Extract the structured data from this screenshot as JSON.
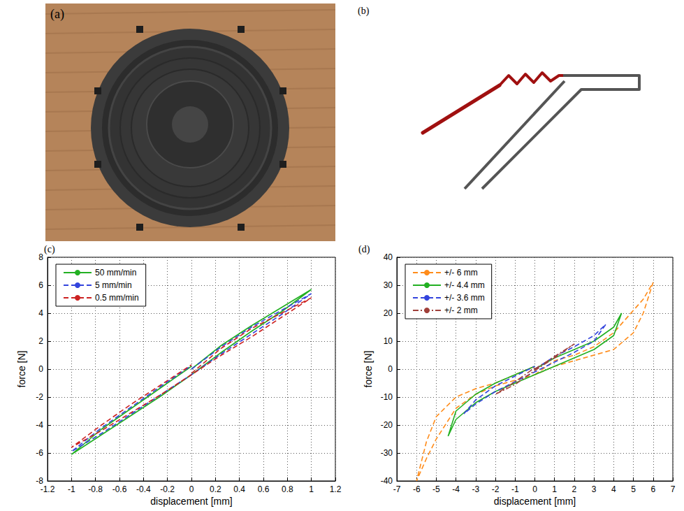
{
  "photo": {
    "label": "(a)"
  },
  "diagram": {
    "label": "(b)"
  },
  "chart_data": [
    {
      "type": "line",
      "title": "(c)",
      "x_label": "displacement [mm]",
      "y_label": "force [N]",
      "xlim": [
        -1.2,
        1.2
      ],
      "xticks": [
        -1.2,
        -1,
        -0.8,
        -0.6,
        -0.4,
        -0.2,
        0,
        0.2,
        0.4,
        0.6,
        0.8,
        1,
        1.2
      ],
      "ylim": [
        -8,
        8
      ],
      "yticks": [
        -8,
        -6,
        -4,
        -2,
        0,
        2,
        4,
        6,
        8
      ],
      "grid": true,
      "legend": "upper left",
      "series": [
        {
          "name": "50 mm/min",
          "color": "#22b022",
          "line_style": "solid",
          "x": [
            0,
            0.25,
            0.5,
            0.75,
            1,
            0.75,
            0.5,
            0.25,
            0,
            -0.25,
            -0.5,
            -0.75,
            -1,
            -0.75,
            -0.5,
            -0.25,
            0
          ],
          "values": [
            0,
            1.7,
            3.1,
            4.4,
            5.7,
            4.1,
            2.7,
            1.2,
            -0.4,
            -1.9,
            -3.3,
            -4.7,
            -6.1,
            -4.3,
            -2.8,
            -1.3,
            0.2
          ]
        },
        {
          "name": "5 mm/min",
          "color": "#3344dd",
          "line_style": "dashed",
          "x": [
            0,
            0.25,
            0.5,
            0.75,
            1,
            0.75,
            0.5,
            0.25,
            0,
            -0.25,
            -0.5,
            -0.75,
            -1,
            -0.75,
            -0.5,
            -0.25,
            0
          ],
          "values": [
            0,
            1.6,
            3.0,
            4.2,
            5.4,
            3.9,
            2.5,
            1.1,
            -0.4,
            -1.8,
            -3.2,
            -4.6,
            -5.9,
            -4.2,
            -2.7,
            -1.2,
            0.25
          ]
        },
        {
          "name": "0.5 mm/min",
          "color": "#cc2222",
          "line_style": "dashed",
          "x": [
            0,
            0.25,
            0.5,
            0.75,
            1,
            0.75,
            0.5,
            0.25,
            0,
            -0.25,
            -0.5,
            -0.75,
            -1,
            -0.75,
            -0.5,
            -0.25,
            0
          ],
          "values": [
            -0.3,
            1.5,
            2.9,
            4.0,
            5.1,
            3.7,
            2.3,
            1.0,
            -0.4,
            -1.8,
            -3.1,
            -4.4,
            -5.6,
            -4.0,
            -2.5,
            -1.1,
            0.3
          ]
        }
      ]
    },
    {
      "type": "line",
      "title": "(d)",
      "x_label": "displacement [mm]",
      "y_label": "force [N]",
      "xlim": [
        -7,
        7
      ],
      "xticks": [
        -7,
        -6,
        -5,
        -4,
        -3,
        -2,
        -1,
        0,
        1,
        2,
        3,
        4,
        5,
        6,
        7
      ],
      "ylim": [
        -40,
        40
      ],
      "yticks": [
        -40,
        -30,
        -20,
        -10,
        0,
        10,
        20,
        30,
        40
      ],
      "grid": true,
      "legend": "upper left",
      "series": [
        {
          "name": "+/- 6 mm",
          "color": "#ff8c1a",
          "line_style": "dashed",
          "x": [
            0,
            1,
            2,
            3,
            4,
            5,
            5.5,
            6,
            5.5,
            5,
            4,
            3,
            2,
            1,
            0,
            -1,
            -2,
            -3,
            -4,
            -5,
            -5.5,
            -6,
            -5.5,
            -5,
            -4,
            -3,
            -2,
            -1,
            0
          ],
          "values": [
            -2,
            3,
            5,
            8,
            13,
            21,
            25,
            31,
            20,
            13,
            7,
            5,
            3,
            1,
            -2,
            -4,
            -6,
            -9,
            -14,
            -25,
            -32,
            -40,
            -26,
            -17,
            -10,
            -7,
            -5,
            -2,
            1
          ]
        },
        {
          "name": "+/- 4.4 mm",
          "color": "#22b022",
          "line_style": "solid",
          "x": [
            0,
            1,
            2,
            3,
            4,
            4.4,
            4,
            3,
            2,
            1,
            0,
            -1,
            -2,
            -3,
            -4,
            -4.4,
            -4,
            -3,
            -2,
            -1,
            0
          ],
          "values": [
            0,
            4,
            7,
            10,
            15,
            20,
            12,
            7,
            4,
            1,
            -2,
            -5,
            -8,
            -12,
            -18,
            -24,
            -15,
            -9,
            -5,
            -2,
            1
          ]
        },
        {
          "name": "+/- 3.6 mm",
          "color": "#3344dd",
          "line_style": "dashed",
          "x": [
            0,
            1,
            2,
            3,
            3.6,
            3,
            2,
            1,
            0,
            -1,
            -2,
            -3,
            -3.6,
            -3,
            -2,
            -1,
            0
          ],
          "values": [
            0,
            4.5,
            8,
            12,
            16,
            10,
            6,
            2.5,
            -1,
            -4.5,
            -8,
            -12.5,
            -16,
            -11,
            -6,
            -2.5,
            1
          ]
        },
        {
          "name": "+/- 2 mm",
          "color": "#a0403a",
          "line_style": "dashdot",
          "x": [
            0,
            1,
            2,
            1,
            0,
            -1,
            -2,
            -1,
            0
          ],
          "values": [
            0,
            4.5,
            9,
            4,
            -0.5,
            -5.5,
            -9,
            -4.5,
            0.5
          ]
        }
      ]
    }
  ]
}
